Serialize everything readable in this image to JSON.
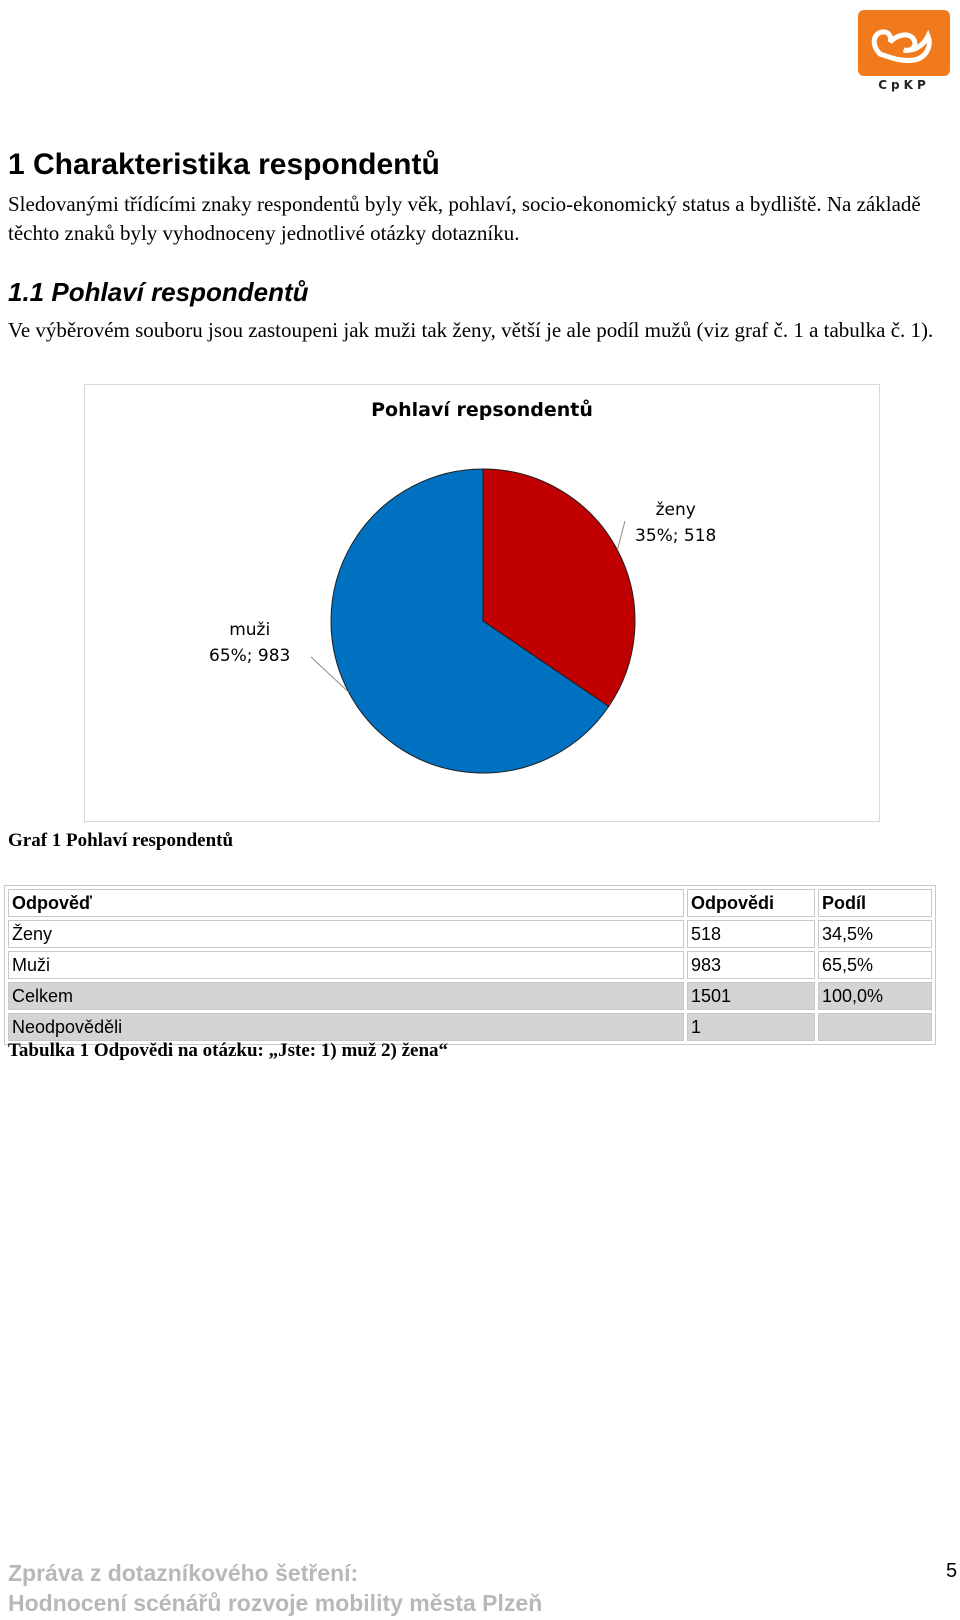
{
  "logo": {
    "text": "CpKP",
    "color": "#f07a1c"
  },
  "heading1": "1   Charakteristika respondentů",
  "intro_text": "Sledovanými třídícími znaky respondentů byly věk, pohlaví, socio-ekonomický status a bydliště. Na základě těchto znaků byly vyhodnoceny jednotlivé otázky dotazníku.",
  "heading2": "1.1  Pohlaví respondentů",
  "section_text": "Ve výběrovém souboru jsou zastoupeni jak muži tak ženy, větší je ale podíl mužů (viz graf č. 1 a tabulka č. 1).",
  "chart_data": {
    "type": "pie",
    "title": "Pohlaví repsondentů",
    "slices": [
      {
        "name": "ženy",
        "value": 518,
        "percent_label": "35%; 518",
        "color": "#c00000"
      },
      {
        "name": "muži",
        "value": 983,
        "percent_label": "65%; 983",
        "color": "#0070c0"
      }
    ]
  },
  "graph_caption": "Graf 1 Pohlaví respondentů",
  "table": {
    "headers": [
      "Odpověď",
      "Odpovědi",
      "Podíl"
    ],
    "rows": [
      [
        "Ženy",
        "518",
        "34,5%"
      ],
      [
        "Muži",
        "983",
        "65,5%"
      ],
      [
        "Celkem",
        "1501",
        "100,0%"
      ],
      [
        "Neodpověděli",
        "1",
        ""
      ]
    ]
  },
  "table_caption": "Tabulka 1 Odpovědi na otázku: „Jste: 1) muž 2) žena“",
  "footer": {
    "line1": "Zpráva z dotazníkového šetření:",
    "line2": "Hodnocení scénářů rozvoje mobility města Plzeň"
  },
  "page_number": "5"
}
